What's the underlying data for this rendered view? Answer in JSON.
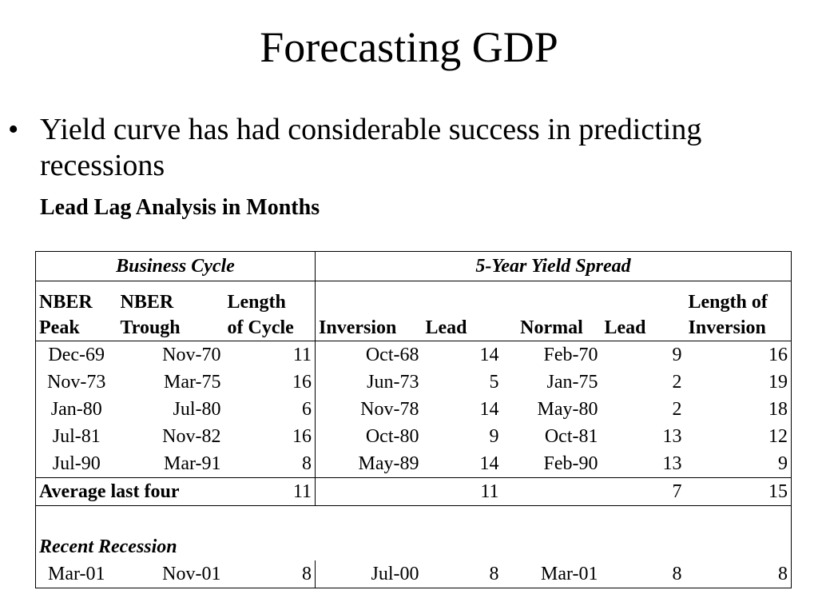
{
  "slide": {
    "title": "Forecasting GDP",
    "bullet": "Yield curve has had considerable success in predicting recessions",
    "bullet_marker": "•"
  },
  "table": {
    "title": "Lead Lag Analysis in Months",
    "groups": {
      "business_cycle": "Business Cycle",
      "yield_spread": "5-Year Yield Spread"
    },
    "headers": {
      "nber_peak_1": "NBER",
      "nber_peak_2": "Peak",
      "nber_trough_1": "NBER",
      "nber_trough_2": "Trough",
      "length_1": "Length",
      "length_2": "of Cycle",
      "inversion": "Inversion",
      "lead1": "Lead",
      "normal": "Normal",
      "lead2": "Lead",
      "length_inv_1": "Length of",
      "length_inv_2": "Inversion"
    },
    "rows": [
      {
        "peak": "Dec-69",
        "trough": "Nov-70",
        "length": "11",
        "inversion": "Oct-68",
        "lead1": "14",
        "normal": "Feb-70",
        "lead2": "9",
        "inv_length": "16"
      },
      {
        "peak": "Nov-73",
        "trough": "Mar-75",
        "length": "16",
        "inversion": "Jun-73",
        "lead1": "5",
        "normal": "Jan-75",
        "lead2": "2",
        "inv_length": "19"
      },
      {
        "peak": "Jan-80",
        "trough": "Jul-80",
        "length": "6",
        "inversion": "Nov-78",
        "lead1": "14",
        "normal": "May-80",
        "lead2": "2",
        "inv_length": "18"
      },
      {
        "peak": "Jul-81",
        "trough": "Nov-82",
        "length": "16",
        "inversion": "Oct-80",
        "lead1": "9",
        "normal": "Oct-81",
        "lead2": "13",
        "inv_length": "12"
      },
      {
        "peak": "Jul-90",
        "trough": "Mar-91",
        "length": "8",
        "inversion": "May-89",
        "lead1": "14",
        "normal": "Feb-90",
        "lead2": "13",
        "inv_length": "9"
      }
    ],
    "average": {
      "label": "Average last four",
      "length": "11",
      "lead1": "11",
      "lead2": "7",
      "inv_length": "15"
    },
    "recent": {
      "label": "Recent Recession",
      "row": {
        "peak": "Mar-01",
        "trough": "Nov-01",
        "length": "8",
        "inversion": "Jul-00",
        "lead1": "8",
        "normal": "Mar-01",
        "lead2": "8",
        "inv_length": "8"
      }
    }
  }
}
